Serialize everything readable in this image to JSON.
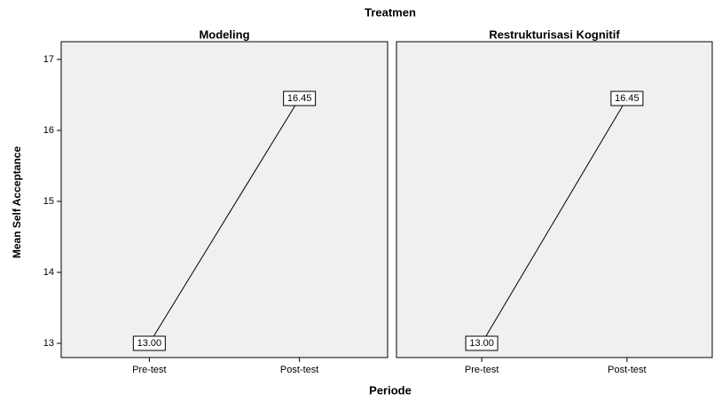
{
  "title": "Treatmen",
  "x_label": "Periode",
  "y_label": "Mean Self Acceptance",
  "chart_data": [
    {
      "type": "line",
      "title": "Modeling",
      "categories": [
        "Pre-test",
        "Post-test"
      ],
      "values": [
        13,
        16.45
      ],
      "value_labels": [
        "13.00",
        "16.45"
      ],
      "color": "#000000",
      "ylim": [
        12.8,
        17.25
      ],
      "yticks": [
        13,
        14,
        15,
        16,
        17
      ]
    },
    {
      "type": "line",
      "title": "Restrukturisasi Kognitif",
      "categories": [
        "Pre-test",
        "Post-test"
      ],
      "values": [
        13,
        16.45
      ],
      "value_labels": [
        "13.00",
        "16.45"
      ],
      "color": "#000000",
      "ylim": [
        12.8,
        17.25
      ]
    }
  ]
}
